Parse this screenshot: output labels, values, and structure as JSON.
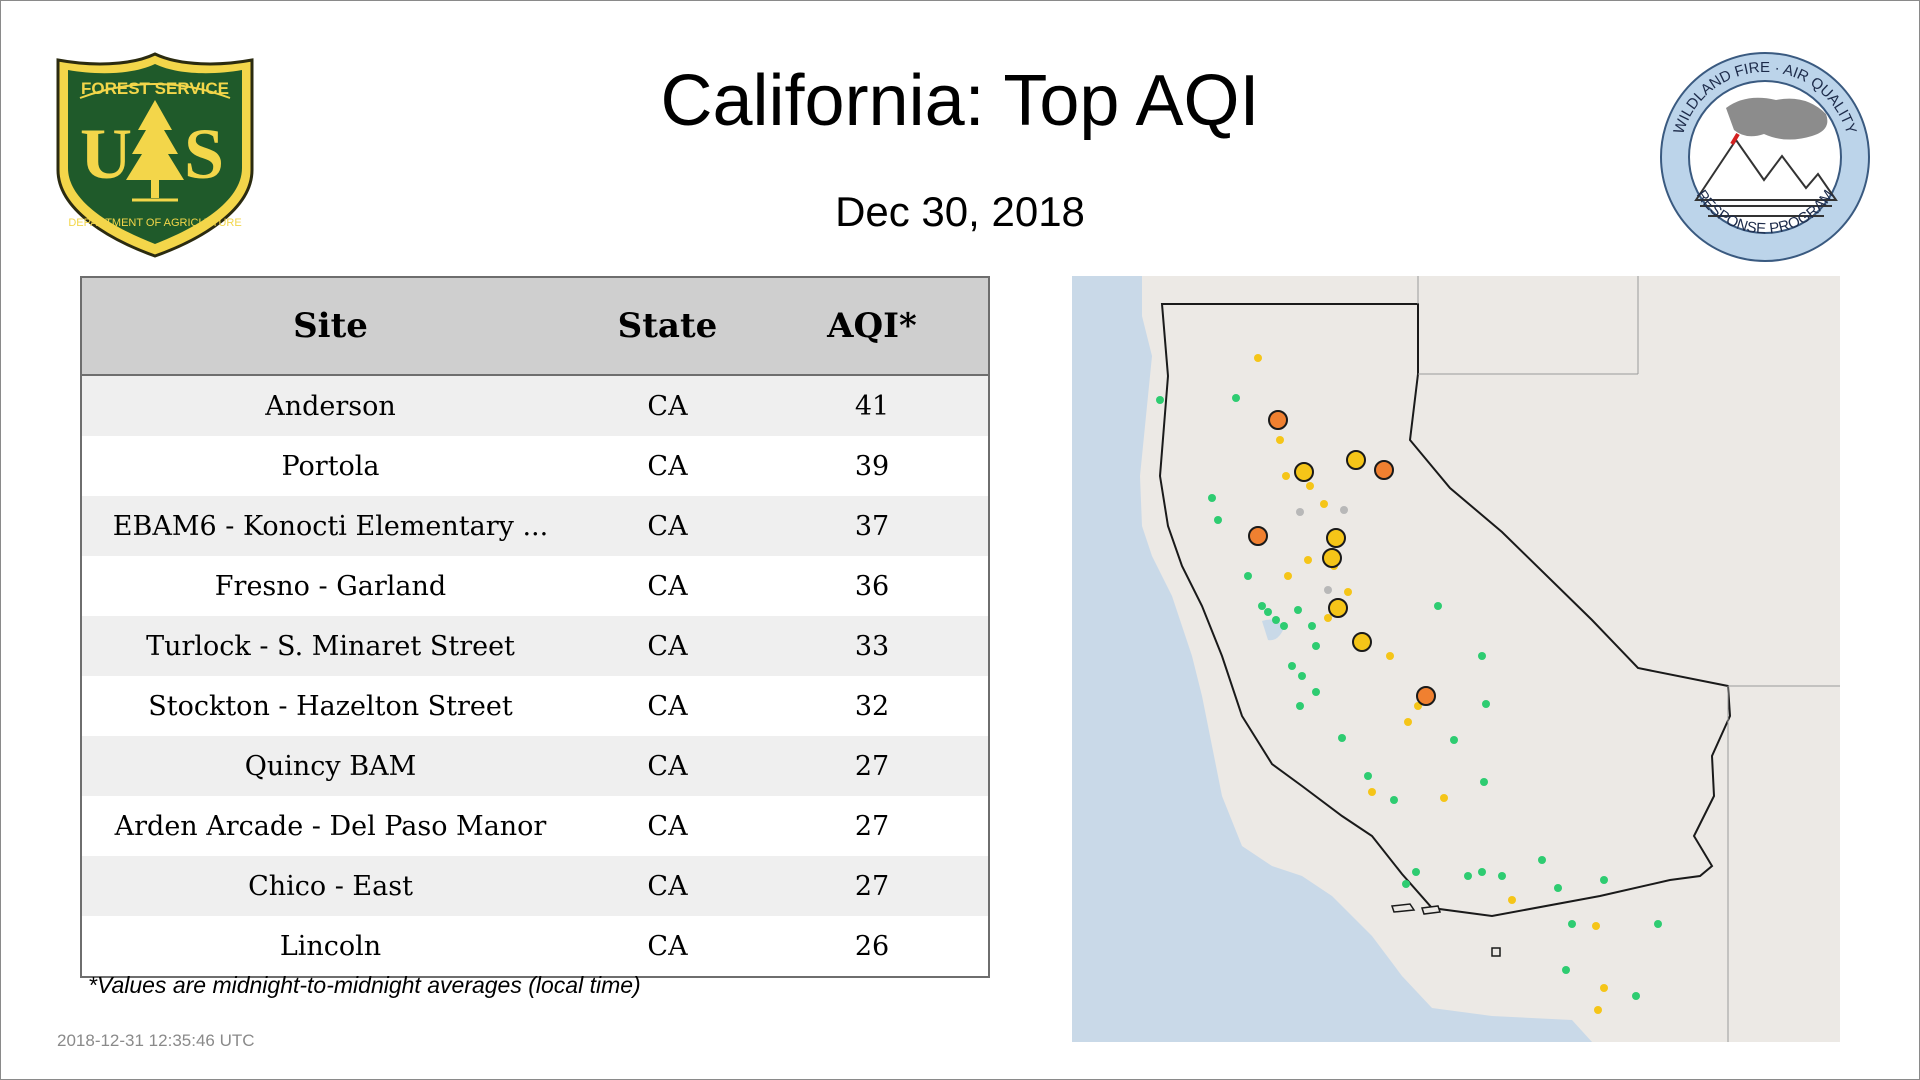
{
  "header": {
    "title": "California: Top AQI",
    "date": "Dec 30, 2018"
  },
  "logos": {
    "left": {
      "name": "usda-forest-service-shield",
      "top_text": "FOREST SERVICE",
      "center_text": "U S",
      "bottom_text": "DEPARTMENT OF AGRICULTURE"
    },
    "right": {
      "name": "wildland-fire-air-quality-response-program-seal",
      "top_text": "WILDLAND FIRE · AIR QUALITY",
      "bottom_text": "RESPONSE PROGRAM"
    }
  },
  "table": {
    "columns": [
      "Site",
      "State",
      "AQI*"
    ],
    "rows": [
      {
        "site": "Anderson",
        "state": "CA",
        "aqi": "41"
      },
      {
        "site": "Portola",
        "state": "CA",
        "aqi": "39"
      },
      {
        "site": "EBAM6 - Konocti Elementary ...",
        "state": "CA",
        "aqi": "37"
      },
      {
        "site": "Fresno - Garland",
        "state": "CA",
        "aqi": "36"
      },
      {
        "site": "Turlock - S. Minaret Street",
        "state": "CA",
        "aqi": "33"
      },
      {
        "site": "Stockton - Hazelton Street",
        "state": "CA",
        "aqi": "32"
      },
      {
        "site": "Quincy BAM",
        "state": "CA",
        "aqi": "27"
      },
      {
        "site": "Arden Arcade - Del Paso Manor",
        "state": "CA",
        "aqi": "27"
      },
      {
        "site": "Chico - East",
        "state": "CA",
        "aqi": "27"
      },
      {
        "site": "Lincoln",
        "state": "CA",
        "aqi": "26"
      }
    ]
  },
  "footnote": "*Values are midnight-to-midnight averages (local time)",
  "timestamp": "2018-12-31 12:35:46 UTC",
  "map": {
    "region": "California",
    "colors": {
      "ocean": "#c9d9e8",
      "land": "#ece9e5",
      "border": "#1a1a1a",
      "good": "#2ecc71",
      "moderate": "#f5c518",
      "usg": "#f08030",
      "gray": "#b8b8b8"
    }
  }
}
